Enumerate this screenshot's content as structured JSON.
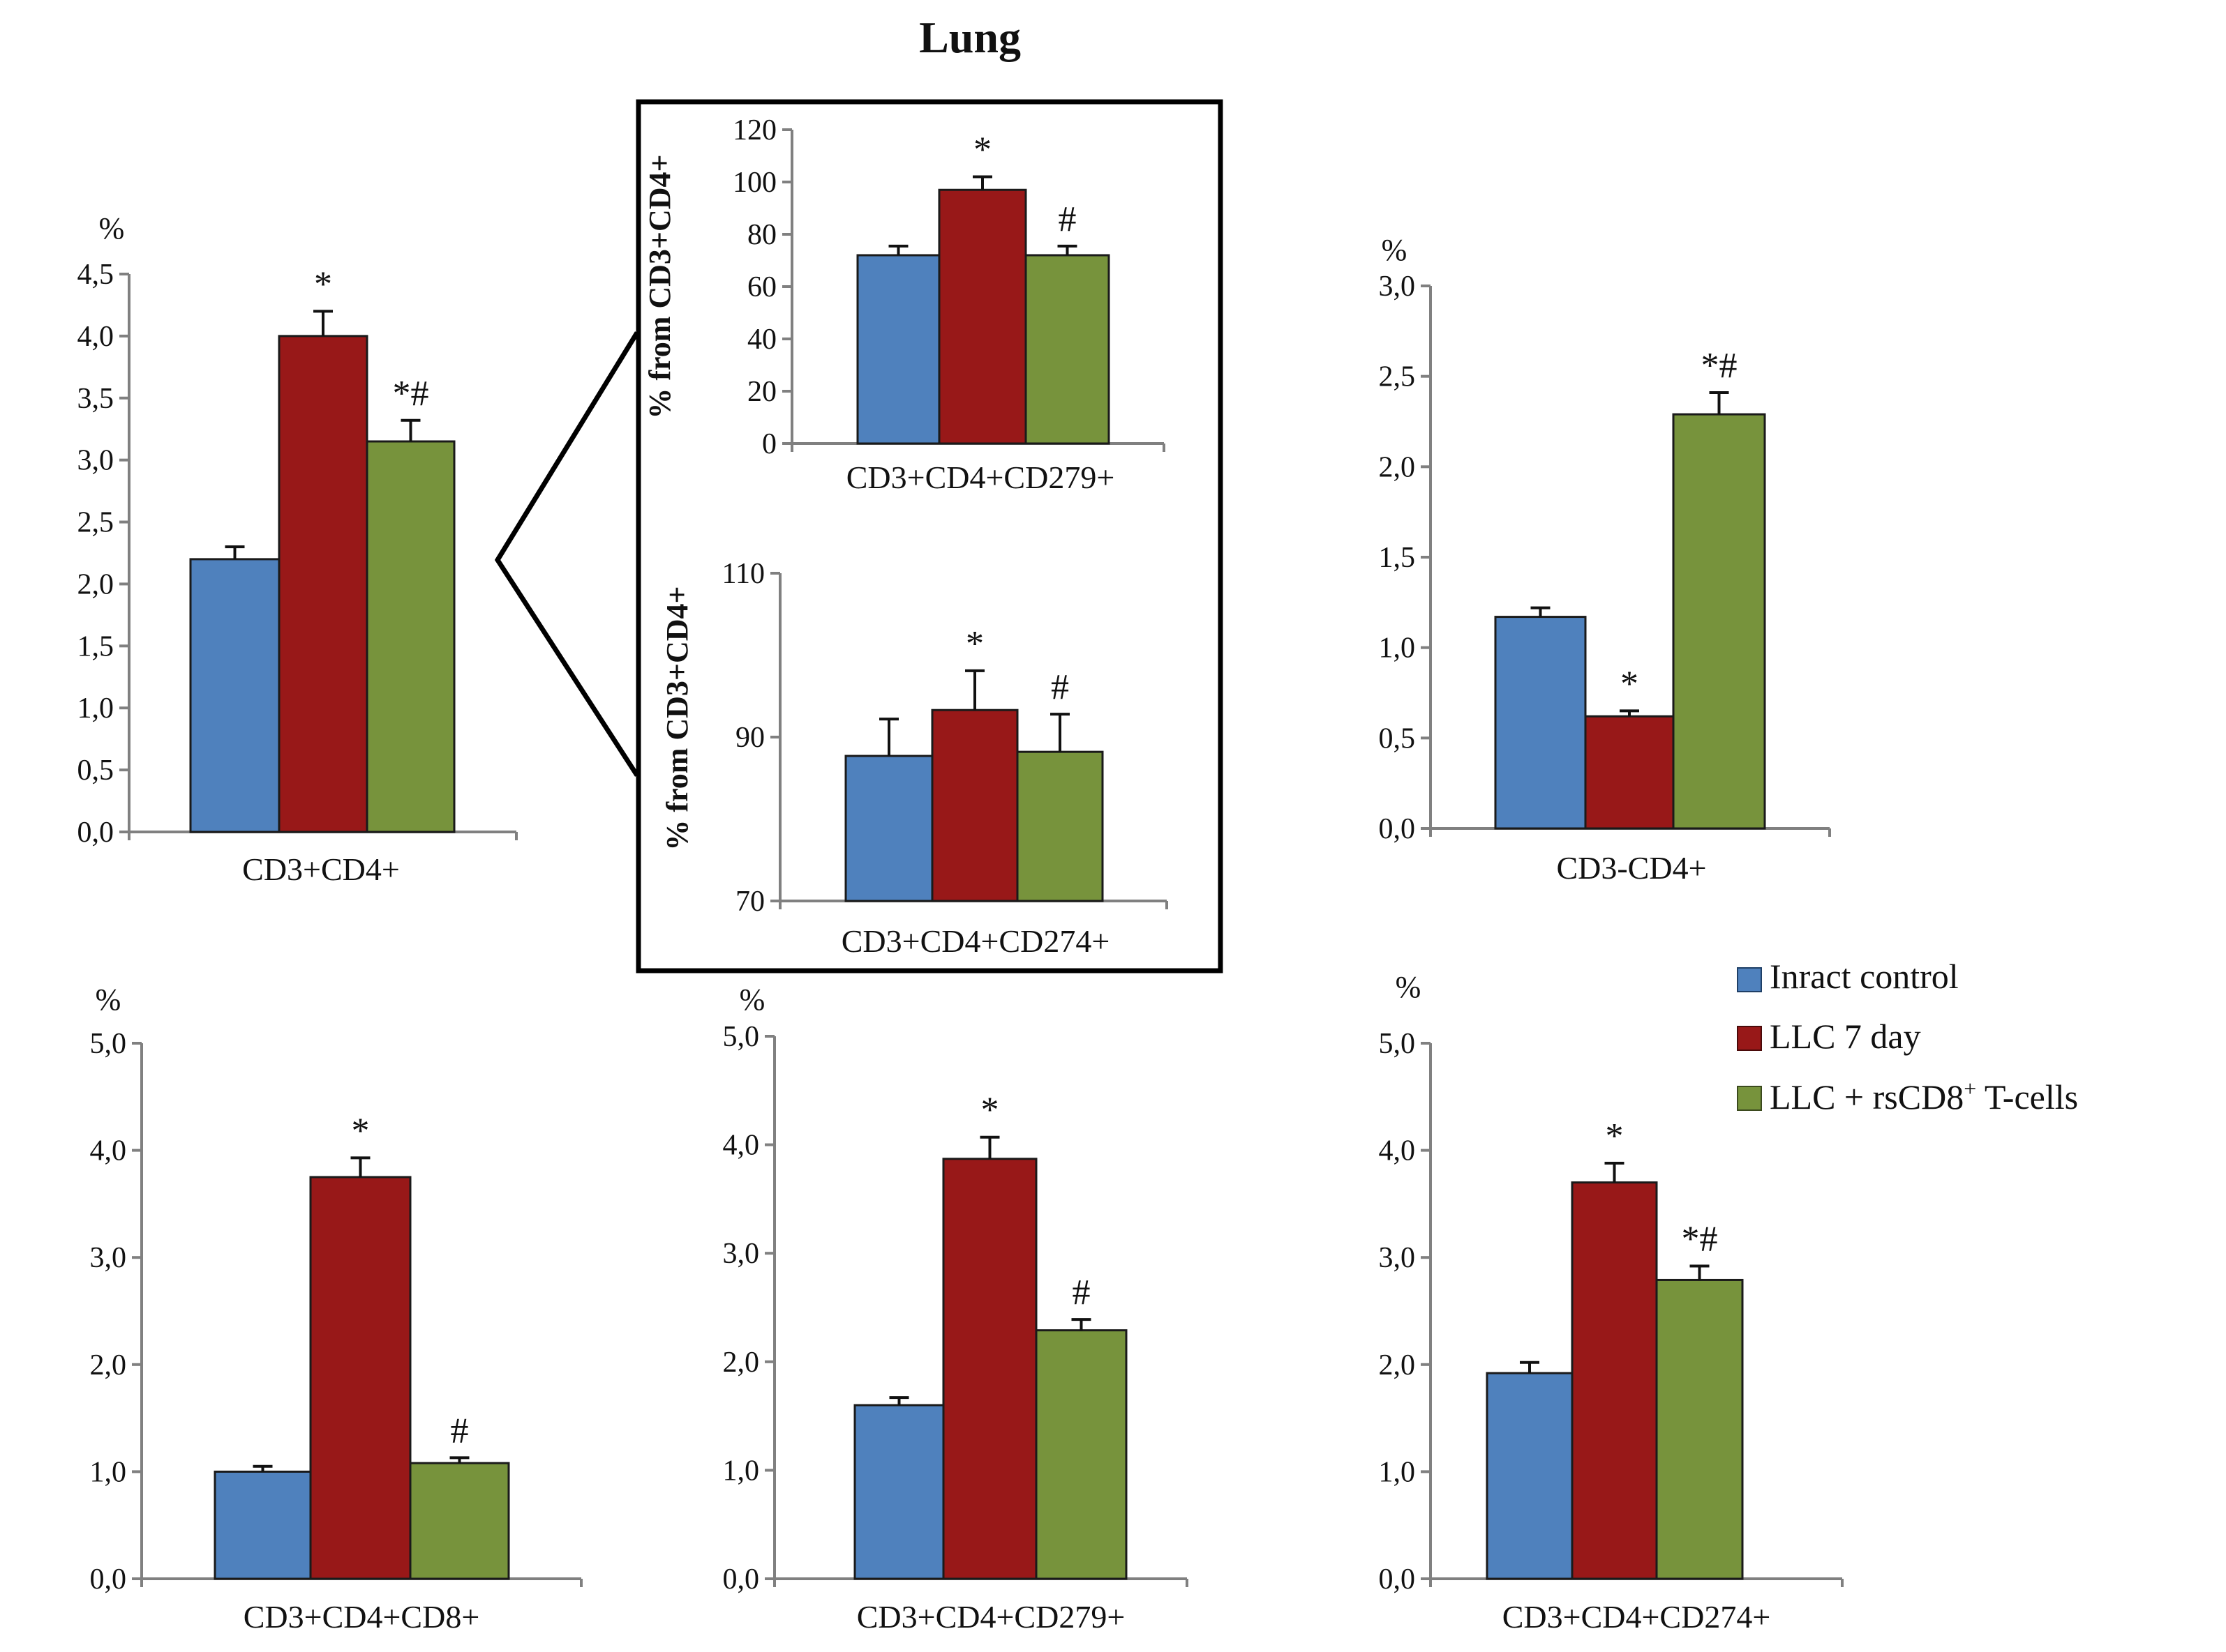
{
  "figure_title": "Lung",
  "colors": {
    "Inract control": "#4f81bd",
    "LLC 7 day": "#981818",
    "LLC + rsCD8+ T-cells": "#77933c"
  },
  "legend": {
    "entries": [
      {
        "name": "Inract control",
        "text": "Inract control"
      },
      {
        "name": "LLC 7 day",
        "text": "LLC 7 day"
      },
      {
        "name": "LLC + rsCD8+ T-cells",
        "text_main": "LLC + rsCD8",
        "text_sup": "+",
        "text_tail": " T-cells"
      }
    ]
  },
  "chart_data": [
    {
      "id": "cd3cd4",
      "type": "bar",
      "category": "CD3+CD4+",
      "unit": "%",
      "ylim": [
        0,
        4.5
      ],
      "ticks": [
        "0,0",
        "0,5",
        "1,0",
        "1,5",
        "2,0",
        "2,5",
        "3,0",
        "3,5",
        "4,0",
        "4,5"
      ],
      "tick_values": [
        0,
        0.5,
        1.0,
        1.5,
        2.0,
        2.5,
        3.0,
        3.5,
        4.0,
        4.5
      ],
      "series": [
        "Inract control",
        "LLC 7 day",
        "LLC + rsCD8+ T-cells"
      ],
      "values": [
        2.2,
        4.0,
        3.15
      ],
      "errors": [
        0.1,
        0.2,
        0.17
      ],
      "annotations": [
        "",
        "*",
        "*#"
      ]
    },
    {
      "id": "inset_cd279",
      "type": "bar",
      "category": "CD3+CD4+CD279+",
      "ylabel": "% from CD3+CD4+",
      "ylim": [
        0,
        120
      ],
      "ticks": [
        "0",
        "20",
        "40",
        "60",
        "80",
        "100",
        "120"
      ],
      "tick_values": [
        0,
        20,
        40,
        60,
        80,
        100,
        120
      ],
      "series": [
        "Inract control",
        "LLC 7 day",
        "LLC + rsCD8+ T-cells"
      ],
      "values": [
        72,
        97,
        72
      ],
      "errors": [
        3.5,
        5,
        3.5
      ],
      "annotations": [
        "",
        "*",
        "#"
      ]
    },
    {
      "id": "inset_cd274",
      "type": "bar",
      "category": "CD3+CD4+CD274+",
      "ylabel": "% from CD3+CD4+",
      "ylim": [
        70,
        110
      ],
      "ticks": [
        "70",
        "90",
        "110"
      ],
      "tick_values": [
        70,
        90,
        110
      ],
      "series": [
        "Inract control",
        "LLC 7 day",
        "LLC + rsCD8+ T-cells"
      ],
      "values": [
        87.7,
        93.3,
        88.2
      ],
      "errors": [
        4.5,
        4.8,
        4.6
      ],
      "annotations": [
        "",
        "*",
        "#"
      ]
    },
    {
      "id": "cd3neg",
      "type": "bar",
      "category": "CD3-CD4+",
      "unit": "%",
      "ylim": [
        0,
        3.0
      ],
      "ticks": [
        "0,0",
        "0,5",
        "1,0",
        "1,5",
        "2,0",
        "2,5",
        "3,0"
      ],
      "tick_values": [
        0,
        0.5,
        1.0,
        1.5,
        2.0,
        2.5,
        3.0
      ],
      "series": [
        "Inract control",
        "LLC 7 day",
        "LLC + rsCD8+ T-cells"
      ],
      "values": [
        1.17,
        0.62,
        2.29
      ],
      "errors": [
        0.05,
        0.03,
        0.12
      ],
      "annotations": [
        "",
        "*",
        "*#"
      ]
    },
    {
      "id": "cd8",
      "type": "bar",
      "category": "CD3+CD4+CD8+",
      "unit": "%",
      "ylim": [
        0,
        5.0
      ],
      "ticks": [
        "0,0",
        "1,0",
        "2,0",
        "3,0",
        "4,0",
        "5,0"
      ],
      "tick_values": [
        0,
        1,
        2,
        3,
        4,
        5
      ],
      "series": [
        "Inract control",
        "LLC 7 day",
        "LLC + rsCD8+ T-cells"
      ],
      "values": [
        1.0,
        3.75,
        1.08
      ],
      "errors": [
        0.05,
        0.18,
        0.05
      ],
      "annotations": [
        "",
        "*",
        "#"
      ]
    },
    {
      "id": "cd279",
      "type": "bar",
      "category": "CD3+CD4+CD279+",
      "unit": "%",
      "ylim": [
        0,
        5.0
      ],
      "ticks": [
        "0,0",
        "1,0",
        "2,0",
        "3,0",
        "4,0",
        "5,0"
      ],
      "tick_values": [
        0,
        1,
        2,
        3,
        4,
        5
      ],
      "series": [
        "Inract control",
        "LLC 7 day",
        "LLC + rsCD8+ T-cells"
      ],
      "values": [
        1.6,
        3.87,
        2.29
      ],
      "errors": [
        0.07,
        0.2,
        0.1
      ],
      "annotations": [
        "",
        "*",
        "#"
      ]
    },
    {
      "id": "cd274",
      "type": "bar",
      "category": "CD3+CD4+CD274+",
      "unit": "%",
      "ylim": [
        0,
        5.0
      ],
      "ticks": [
        "0,0",
        "1,0",
        "2,0",
        "3,0",
        "4,0",
        "5,0"
      ],
      "tick_values": [
        0,
        1,
        2,
        3,
        4,
        5
      ],
      "series": [
        "Inract control",
        "LLC 7 day",
        "LLC + rsCD8+ T-cells"
      ],
      "values": [
        1.92,
        3.7,
        2.79
      ],
      "errors": [
        0.1,
        0.18,
        0.13
      ],
      "annotations": [
        "",
        "*",
        "*#"
      ]
    }
  ]
}
